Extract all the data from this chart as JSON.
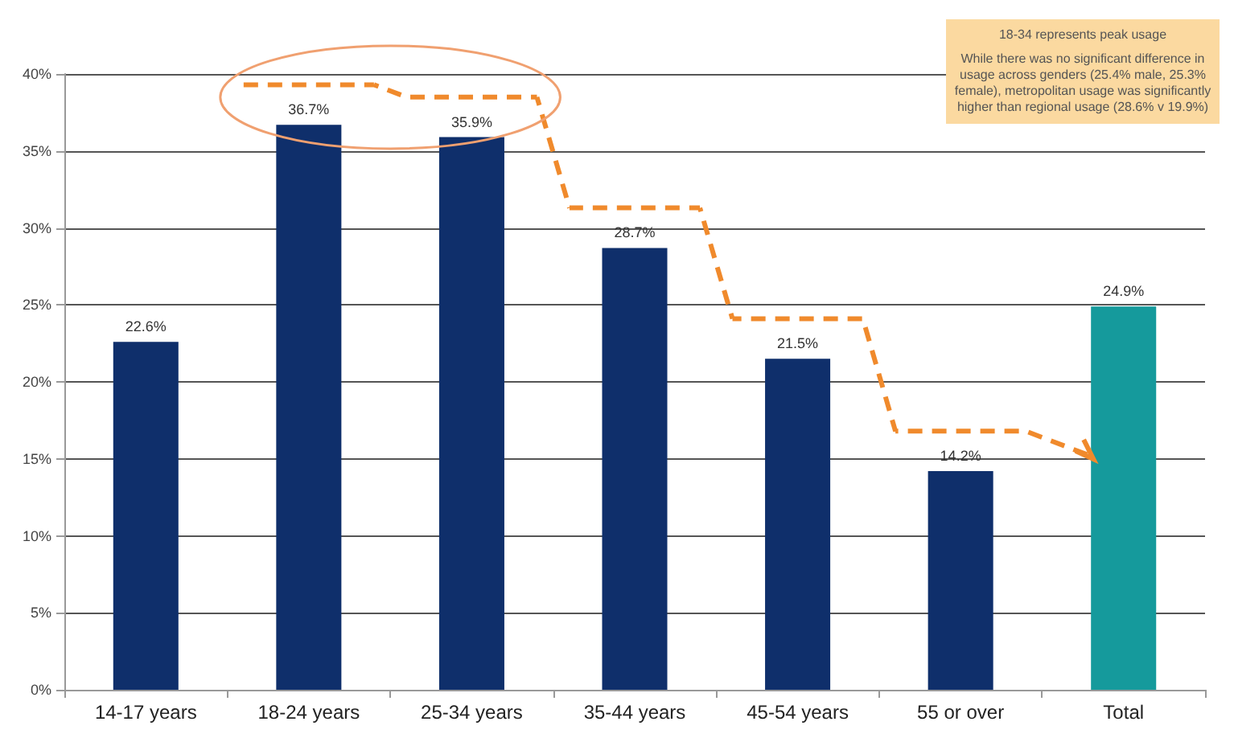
{
  "chart_data": {
    "type": "bar",
    "categories": [
      "14-17 years",
      "18-24 years",
      "25-34 years",
      "35-44 years",
      "45-54 years",
      "55 or over",
      "Total"
    ],
    "values": [
      22.6,
      36.7,
      35.9,
      28.7,
      21.5,
      14.2,
      24.9
    ],
    "colors": [
      "#0f2f6b",
      "#0f2f6b",
      "#0f2f6b",
      "#0f2f6b",
      "#0f2f6b",
      "#0f2f6b",
      "#159a9c"
    ],
    "value_labels": [
      "22.6%",
      "36.7%",
      "35.9%",
      "28.7%",
      "21.5%",
      "14.2%",
      "24.9%"
    ],
    "ylim": [
      0,
      40
    ],
    "yticks": [
      {
        "value": 0,
        "label": "0%"
      },
      {
        "value": 5,
        "label": "5%"
      },
      {
        "value": 10,
        "label": "10%"
      },
      {
        "value": 15,
        "label": "15%"
      },
      {
        "value": 20,
        "label": "20%"
      },
      {
        "value": 25,
        "label": "25%"
      },
      {
        "value": 30,
        "label": "30%"
      },
      {
        "value": 35,
        "label": "35%"
      },
      {
        "value": 40,
        "label": "40%"
      }
    ],
    "grid": "y",
    "annotations": [
      "18-34 represents peak usage",
      "While there was no significant difference in usage across genders (25.4% male, 25.3% female), metropolitan usage was significantly higher than regional usage (28.6% v 19.9%)"
    ]
  }
}
